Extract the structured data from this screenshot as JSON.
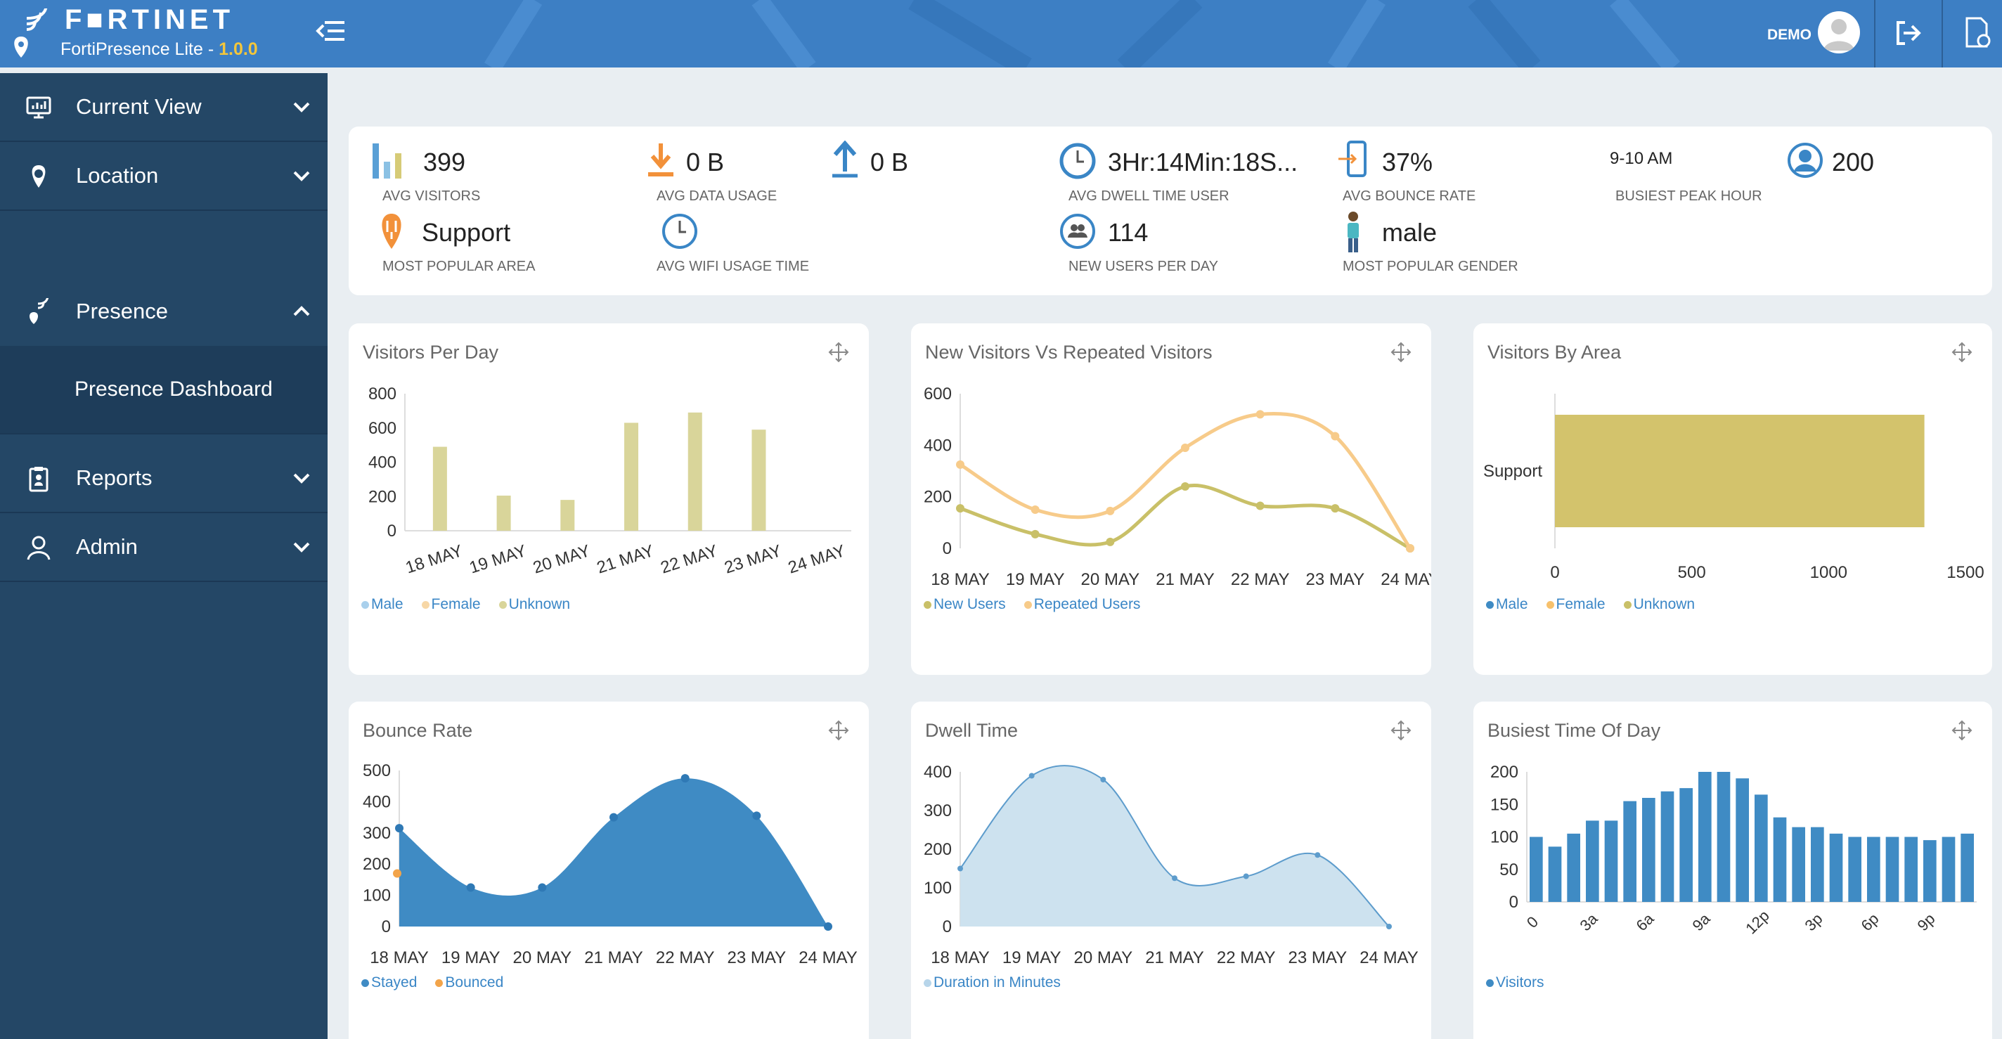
{
  "header": {
    "brand": "F■RTINET",
    "app_name": "FortiPresence Lite - ",
    "version": "1.0.0",
    "user": "DEMO"
  },
  "sidebar": {
    "items": [
      {
        "label": "Current View",
        "icon": "monitor-chart-icon",
        "expanded": false
      },
      {
        "label": "Location",
        "icon": "location-pin-icon",
        "expanded": false
      },
      {
        "label": "Presence",
        "icon": "presence-signal-icon",
        "expanded": true
      },
      {
        "label": "Reports",
        "icon": "clipboard-icon",
        "expanded": false
      },
      {
        "label": "Admin",
        "icon": "user-icon",
        "expanded": false
      }
    ],
    "subitem": "Presence Dashboard"
  },
  "stats": {
    "avg_visitors": {
      "value": "399",
      "label": "AVG VISITORS"
    },
    "avg_data_usage": {
      "value": "0 B",
      "label": "AVG DATA USAGE"
    },
    "upload": {
      "value": "0 B"
    },
    "avg_dwell": {
      "value": "3Hr:14Min:18S...",
      "label": "AVG DWELL TIME USER"
    },
    "bounce_rate": {
      "value": "37%",
      "label": "AVG BOUNCE RATE"
    },
    "busiest_peak": {
      "value": "9-10 AM",
      "label": "BUSIEST PEAK HOUR"
    },
    "users_count": {
      "value": "200"
    },
    "popular_area": {
      "value": "Support",
      "label": "MOST POPULAR AREA"
    },
    "wifi_usage": {
      "label": "AVG WIFI USAGE TIME"
    },
    "new_users": {
      "value": "114",
      "label": "NEW USERS PER DAY"
    },
    "popular_gender": {
      "value": "male",
      "label": "MOST POPULAR GENDER"
    }
  },
  "colors": {
    "header": "#3d7fc4",
    "sidebar": "#244766",
    "khaki": "#d9d59a",
    "peach": "#f7cb8a",
    "olive": "#c9c068",
    "area_bar": "#d3c36c",
    "blue": "#3f8bc4",
    "light_blue": "#cde2ef",
    "legend_text": "#3a86c6"
  },
  "cards": {
    "visitors_per_day": {
      "title": "Visitors Per Day",
      "legend": [
        "Male",
        "Female",
        "Unknown"
      ]
    },
    "new_vs_repeated": {
      "title": "New Visitors Vs Repeated Visitors",
      "legend": [
        "New Users",
        "Repeated Users"
      ]
    },
    "visitors_by_area": {
      "title": "Visitors By Area",
      "legend": [
        "Male",
        "Female",
        "Unknown"
      ]
    },
    "bounce_rate": {
      "title": "Bounce Rate",
      "legend": [
        "Stayed",
        "Bounced"
      ]
    },
    "dwell_time": {
      "title": "Dwell Time",
      "legend": [
        "Duration in Minutes"
      ]
    },
    "busiest_time": {
      "title": "Busiest Time Of Day",
      "legend": [
        "Visitors"
      ]
    }
  },
  "chart_data": [
    {
      "id": "visitors_per_day",
      "type": "bar",
      "categories": [
        "18 MAY",
        "19 MAY",
        "20 MAY",
        "21 MAY",
        "22 MAY",
        "23 MAY",
        "24 MAY"
      ],
      "series": [
        {
          "name": "Unknown",
          "values": [
            490,
            205,
            180,
            630,
            690,
            590,
            null
          ]
        }
      ],
      "yticks": [
        0,
        200,
        400,
        600,
        800
      ],
      "ylim": [
        0,
        800
      ]
    },
    {
      "id": "new_vs_repeated",
      "type": "line",
      "categories": [
        "18 MAY",
        "19 MAY",
        "20 MAY",
        "21 MAY",
        "22 MAY",
        "23 MAY",
        "24 MAY"
      ],
      "series": [
        {
          "name": "New Users",
          "values": [
            155,
            55,
            25,
            240,
            165,
            155,
            0
          ]
        },
        {
          "name": "Repeated Users",
          "values": [
            325,
            150,
            145,
            390,
            520,
            435,
            0
          ]
        }
      ],
      "yticks": [
        0,
        200,
        400,
        600
      ],
      "ylim": [
        0,
        600
      ]
    },
    {
      "id": "visitors_by_area",
      "type": "bar",
      "orientation": "horizontal",
      "categories": [
        "Support"
      ],
      "series": [
        {
          "name": "Unknown",
          "values": [
            1350
          ]
        }
      ],
      "xticks": [
        0,
        500,
        1000,
        1500
      ],
      "xlim": [
        0,
        1500
      ]
    },
    {
      "id": "bounce_rate",
      "type": "area",
      "categories": [
        "18 MAY",
        "19 MAY",
        "20 MAY",
        "21 MAY",
        "22 MAY",
        "23 MAY",
        "24 MAY"
      ],
      "series": [
        {
          "name": "Stayed",
          "values": [
            315,
            125,
            125,
            350,
            475,
            355,
            0
          ]
        },
        {
          "name": "Bounced",
          "values": [
            170,
            null,
            null,
            null,
            null,
            null,
            null
          ]
        }
      ],
      "yticks": [
        0,
        100,
        200,
        300,
        400,
        500
      ],
      "ylim": [
        0,
        500
      ]
    },
    {
      "id": "dwell_time",
      "type": "area",
      "categories": [
        "18 MAY",
        "19 MAY",
        "20 MAY",
        "21 MAY",
        "22 MAY",
        "23 MAY",
        "24 MAY"
      ],
      "series": [
        {
          "name": "Duration in Minutes",
          "values": [
            150,
            390,
            380,
            125,
            130,
            185,
            0
          ]
        }
      ],
      "yticks": [
        0,
        100,
        200,
        300,
        400
      ],
      "ylim": [
        0,
        400
      ]
    },
    {
      "id": "busiest_time",
      "type": "bar",
      "categories": [
        "0",
        "",
        "",
        "3a",
        "",
        "",
        "6a",
        "",
        "",
        "9a",
        "",
        "",
        "12p",
        "",
        "",
        "3p",
        "",
        "",
        "6p",
        "",
        "",
        "9p",
        "",
        ""
      ],
      "series": [
        {
          "name": "Visitors",
          "values": [
            100,
            85,
            105,
            125,
            125,
            155,
            160,
            170,
            175,
            200,
            200,
            190,
            165,
            130,
            115,
            115,
            105,
            100,
            100,
            100,
            100,
            95,
            100,
            105
          ]
        }
      ],
      "yticks": [
        0,
        50,
        100,
        150,
        200
      ],
      "ylim": [
        0,
        200
      ]
    }
  ]
}
